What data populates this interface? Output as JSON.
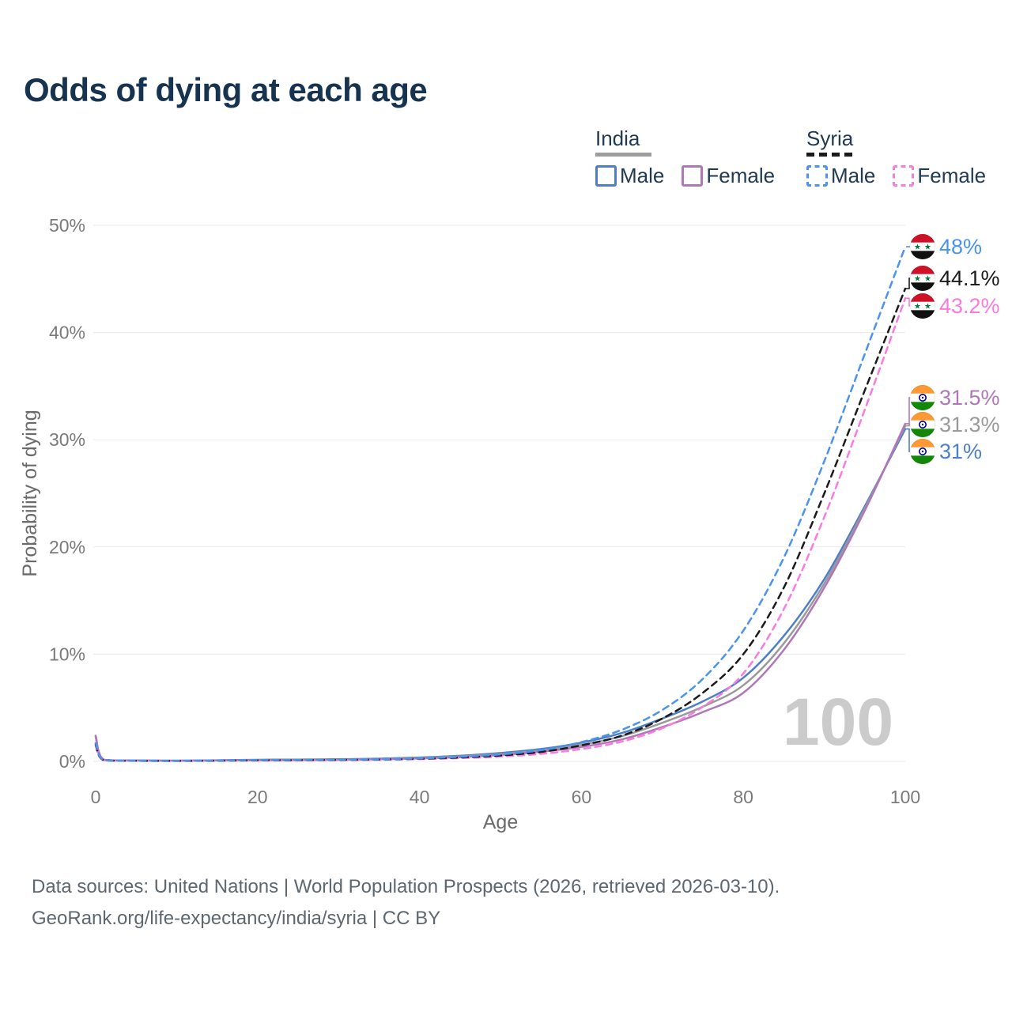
{
  "title": "Odds of dying at each age",
  "age_indicator": "100",
  "legend": {
    "position": "top-right",
    "groups": [
      {
        "name": "India",
        "line_style": "solid",
        "total_color": "#9e9e9e",
        "items": [
          {
            "label": "Male",
            "color": "#4b7fc9"
          },
          {
            "label": "Female",
            "color": "#b077b8"
          }
        ]
      },
      {
        "name": "Syria",
        "line_style": "dashed",
        "total_color": "#1b1b1b",
        "items": [
          {
            "label": "Male",
            "color": "#4a93ee"
          },
          {
            "label": "Female",
            "color": "#fb7ae1"
          }
        ]
      }
    ]
  },
  "chart_data": {
    "type": "line",
    "title": "Odds of dying at each age",
    "xlabel": "Age",
    "ylabel": "Probability of dying",
    "xlim": [
      0,
      100
    ],
    "ylim": [
      0,
      50
    ],
    "x_ticks": [
      0,
      20,
      40,
      60,
      80,
      100
    ],
    "y_tick_values": [
      0,
      10,
      20,
      30,
      40,
      50
    ],
    "y_tick_labels": [
      "0%",
      "10%",
      "20%",
      "30%",
      "40%",
      "50%"
    ],
    "grid": "horizontal",
    "legend_position": "top-right",
    "x": [
      0,
      1,
      5,
      10,
      15,
      20,
      25,
      30,
      35,
      40,
      45,
      50,
      55,
      60,
      65,
      70,
      75,
      80,
      85,
      90,
      95,
      100
    ],
    "series": [
      {
        "name": "Syria male",
        "country": "Syria",
        "sex": "male",
        "color": "#4a93ee",
        "line": "dashed",
        "flag": "syria",
        "end_label": "48%",
        "values": [
          1.7,
          0.12,
          0.06,
          0.05,
          0.08,
          0.12,
          0.14,
          0.16,
          0.2,
          0.28,
          0.42,
          0.65,
          1.05,
          1.8,
          2.95,
          4.8,
          7.7,
          12.2,
          19,
          28,
          38,
          48
        ]
      },
      {
        "name": "Syria total",
        "country": "Syria",
        "sex": "total",
        "color": "#1b1b1b",
        "line": "dashed",
        "flag": "syria",
        "end_label": "44.1%",
        "values": [
          1.58,
          0.11,
          0.055,
          0.045,
          0.065,
          0.1,
          0.12,
          0.14,
          0.18,
          0.25,
          0.36,
          0.55,
          0.88,
          1.5,
          2.4,
          4,
          6.4,
          10,
          16.2,
          25,
          34.6,
          44.1
        ]
      },
      {
        "name": "Syria female",
        "country": "Syria",
        "sex": "female",
        "color": "#fb7ae1",
        "line": "dashed",
        "flag": "syria",
        "end_label": "43.2%",
        "values": [
          1.45,
          0.1,
          0.05,
          0.04,
          0.05,
          0.07,
          0.09,
          0.11,
          0.15,
          0.21,
          0.3,
          0.45,
          0.7,
          1.15,
          1.85,
          3.1,
          5.1,
          8.2,
          14.2,
          22.8,
          32.8,
          43.2
        ]
      },
      {
        "name": "India female",
        "country": "India",
        "sex": "female",
        "color": "#b077b8",
        "line": "solid",
        "flag": "india",
        "end_label": "31.5%",
        "values": [
          2.4,
          0.16,
          0.08,
          0.06,
          0.08,
          0.1,
          0.12,
          0.15,
          0.2,
          0.28,
          0.4,
          0.6,
          0.9,
          1.35,
          2.05,
          3.2,
          4.6,
          6.4,
          10.4,
          16.2,
          23.4,
          31.5
        ]
      },
      {
        "name": "India total",
        "country": "India",
        "sex": "total",
        "color": "#9a9a9a",
        "line": "solid",
        "flag": "india",
        "end_label": "31.3%",
        "values": [
          2.35,
          0.15,
          0.08,
          0.065,
          0.09,
          0.13,
          0.15,
          0.18,
          0.23,
          0.32,
          0.46,
          0.69,
          1.03,
          1.55,
          2.35,
          3.6,
          5.1,
          7.1,
          11,
          16.6,
          23.6,
          31.3
        ]
      },
      {
        "name": "India male",
        "country": "India",
        "sex": "male",
        "color": "#4b7fc9",
        "line": "solid",
        "flag": "india",
        "end_label": "31%",
        "values": [
          2.3,
          0.15,
          0.08,
          0.07,
          0.1,
          0.15,
          0.17,
          0.2,
          0.26,
          0.36,
          0.52,
          0.78,
          1.15,
          1.75,
          2.65,
          4,
          5.6,
          7.8,
          11.7,
          17,
          23.8,
          31
        ]
      }
    ]
  },
  "footer": {
    "line1": "Data sources: United Nations | World Population Prospects (2026, retrieved 2026-03-10).",
    "line2": "GeoRank.org/life-expectancy/india/syria | CC BY"
  }
}
